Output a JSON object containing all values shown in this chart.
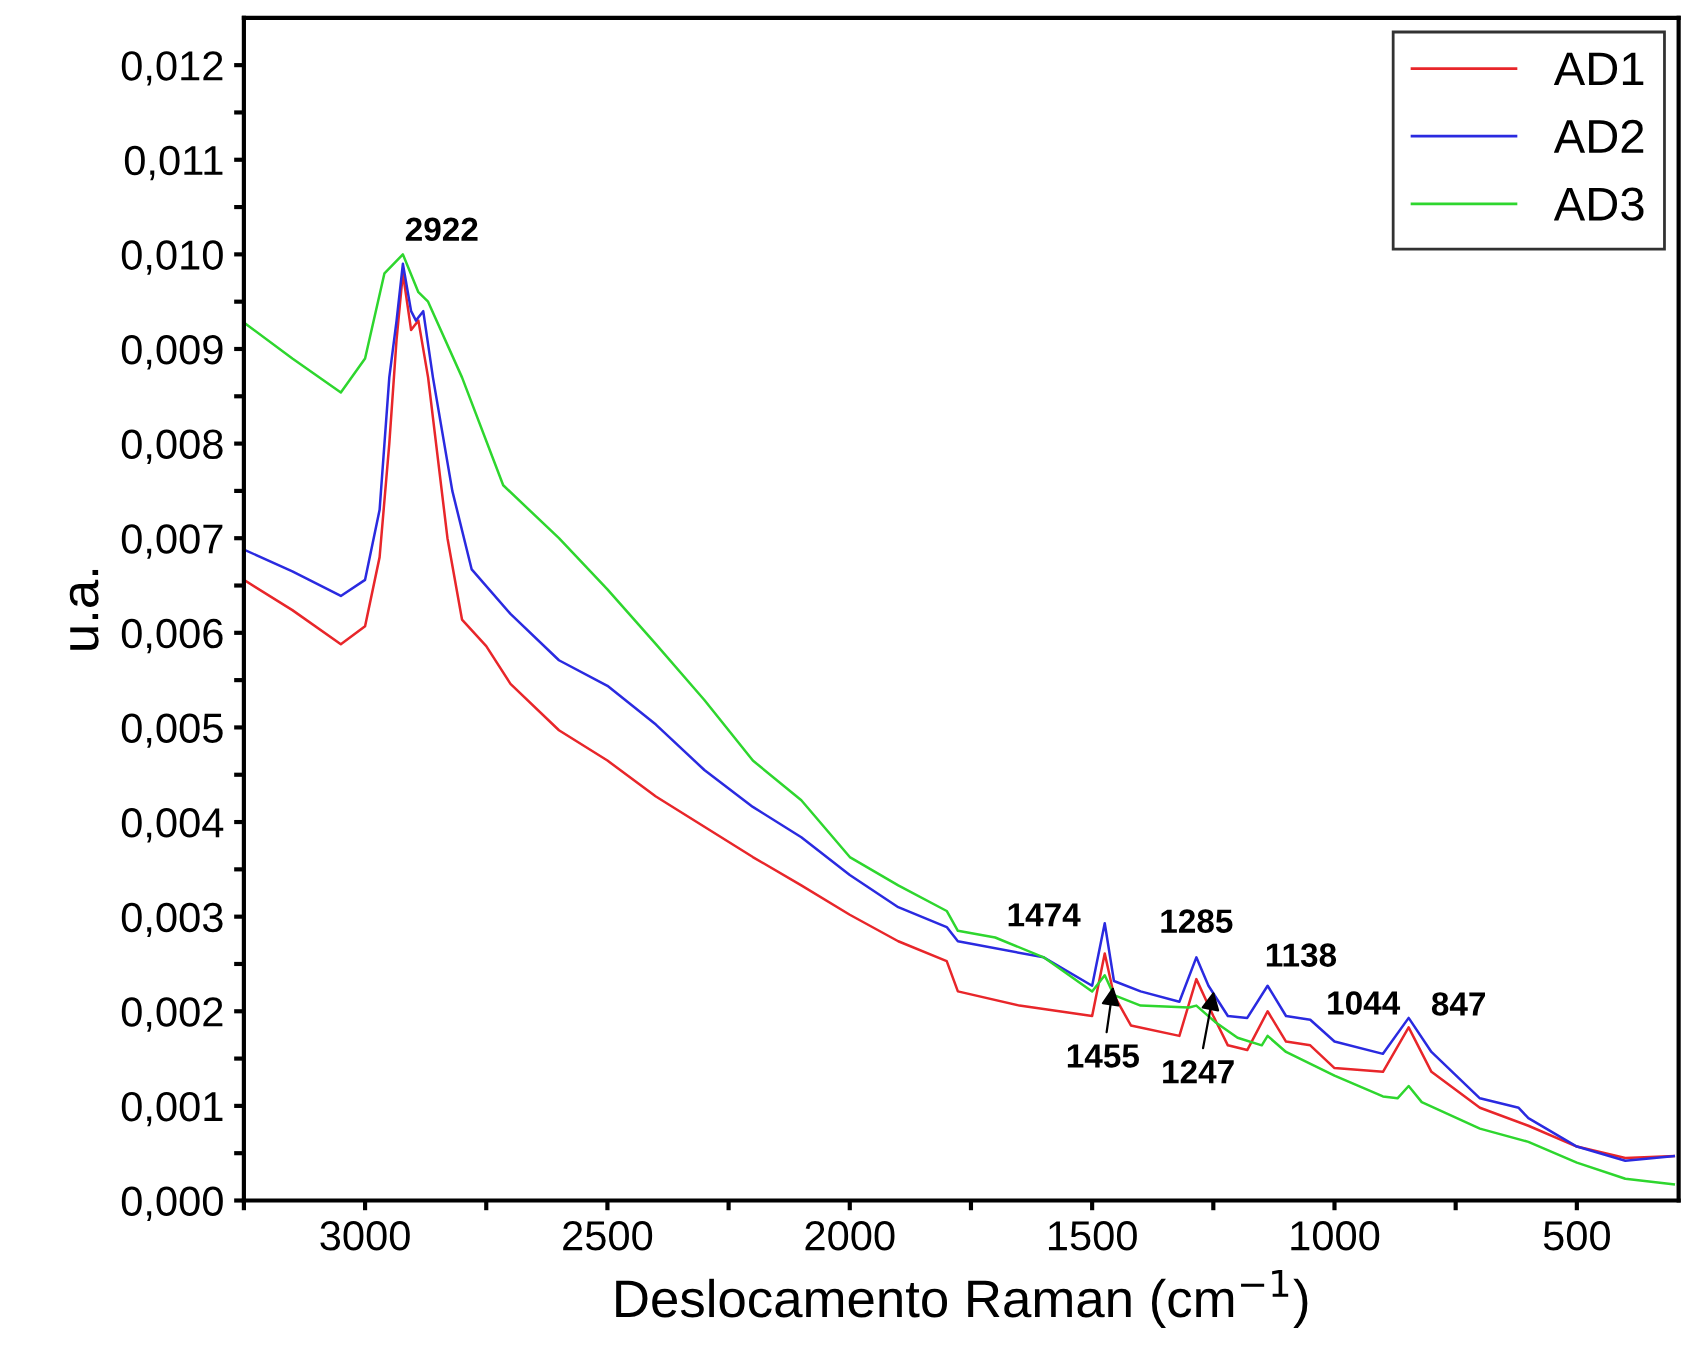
{
  "chart_data": {
    "type": "line",
    "xlabel": "Deslocamento Raman (cm$^{−1}$)",
    "ylabel": "u.a.",
    "xlim": [
      3250,
      290
    ],
    "ylim": [
      0,
      0.0125
    ],
    "xticks": [
      {
        "value": 3250,
        "label": null
      },
      3000,
      {
        "value": 2750,
        "label": null
      },
      2500,
      {
        "value": 2250,
        "label": null
      },
      2000,
      {
        "value": 1750,
        "label": null
      },
      1500,
      {
        "value": 1250,
        "label": null
      },
      1000,
      {
        "value": 750,
        "label": null
      },
      500
    ],
    "yticks": [
      {
        "value": 0,
        "label": "0,000"
      },
      {
        "value": 0.0005,
        "label": null
      },
      {
        "value": 0.001,
        "label": "0,001"
      },
      {
        "value": 0.0015,
        "label": null
      },
      {
        "value": 0.002,
        "label": "0,002"
      },
      {
        "value": 0.0025,
        "label": null
      },
      {
        "value": 0.003,
        "label": "0,003"
      },
      {
        "value": 0.0035,
        "label": null
      },
      {
        "value": 0.004,
        "label": "0,004"
      },
      {
        "value": 0.0045,
        "label": null
      },
      {
        "value": 0.005,
        "label": "0,005"
      },
      {
        "value": 0.0055,
        "label": null
      },
      {
        "value": 0.006,
        "label": "0,006"
      },
      {
        "value": 0.0065,
        "label": null
      },
      {
        "value": 0.007,
        "label": "0,007"
      },
      {
        "value": 0.0075,
        "label": null
      },
      {
        "value": 0.008,
        "label": "0,008"
      },
      {
        "value": 0.0085,
        "label": null
      },
      {
        "value": 0.009,
        "label": "0,009"
      },
      {
        "value": 0.0095,
        "label": null
      },
      {
        "value": 0.01,
        "label": "0,010"
      },
      {
        "value": 0.0105,
        "label": null
      },
      {
        "value": 0.011,
        "label": "0,011"
      },
      {
        "value": 0.0115,
        "label": null
      },
      {
        "value": 0.012,
        "label": "0,012"
      }
    ],
    "grid": false,
    "legend": "top right",
    "marker": "none",
    "line_style": "solid",
    "series": [
      {
        "name": "AD1",
        "color": "#e8262a",
        "x": [
          3250,
          3150,
          3050,
          3000,
          2970,
          2950,
          2935,
          2922,
          2905,
          2890,
          2870,
          2830,
          2800,
          2750,
          2700,
          2600,
          2500,
          2400,
          2300,
          2200,
          2100,
          2000,
          1900,
          1800,
          1777,
          1650,
          1500,
          1474,
          1455,
          1420,
          1320,
          1285,
          1250,
          1220,
          1180,
          1138,
          1100,
          1050,
          1000,
          900,
          847,
          800,
          700,
          600,
          500,
          400,
          300
        ],
        "values": [
          0.00656,
          0.00624,
          0.00588,
          0.00607,
          0.0068,
          0.008,
          0.0091,
          0.0098,
          0.0092,
          0.0093,
          0.0087,
          0.007,
          0.00614,
          0.00586,
          0.00546,
          0.00497,
          0.00465,
          0.00427,
          0.00395,
          0.00363,
          0.00333,
          0.00302,
          0.00274,
          0.00253,
          0.00221,
          0.00206,
          0.00195,
          0.00261,
          0.00217,
          0.00185,
          0.00174,
          0.00234,
          0.00195,
          0.00164,
          0.00159,
          0.002,
          0.00168,
          0.00164,
          0.0014,
          0.00136,
          0.00183,
          0.00136,
          0.00098,
          0.00079,
          0.00057,
          0.00045,
          0.00047
        ]
      },
      {
        "name": "AD2",
        "color": "#2a2ae0",
        "x": [
          3250,
          3150,
          3050,
          3000,
          2970,
          2950,
          2935,
          2922,
          2905,
          2895,
          2880,
          2860,
          2820,
          2780,
          2700,
          2600,
          2500,
          2400,
          2300,
          2200,
          2100,
          2000,
          1900,
          1800,
          1777,
          1600,
          1500,
          1474,
          1455,
          1400,
          1320,
          1285,
          1260,
          1220,
          1180,
          1138,
          1100,
          1050,
          1000,
          900,
          847,
          800,
          700,
          620,
          600,
          500,
          400,
          300
        ],
        "values": [
          0.00688,
          0.00665,
          0.00639,
          0.00656,
          0.0073,
          0.0087,
          0.0093,
          0.0099,
          0.0094,
          0.0093,
          0.0094,
          0.0087,
          0.0075,
          0.00667,
          0.0062,
          0.00571,
          0.00544,
          0.00503,
          0.00455,
          0.00416,
          0.00384,
          0.00344,
          0.0031,
          0.00289,
          0.00274,
          0.00257,
          0.00227,
          0.00293,
          0.00232,
          0.00221,
          0.0021,
          0.00257,
          0.00227,
          0.00195,
          0.00193,
          0.00227,
          0.00195,
          0.00191,
          0.00168,
          0.00155,
          0.00193,
          0.00157,
          0.00108,
          0.00098,
          0.00087,
          0.00057,
          0.00042,
          0.00047
        ]
      },
      {
        "name": "AD3",
        "color": "#2ed62e",
        "x": [
          3250,
          3150,
          3050,
          3000,
          2960,
          2922,
          2890,
          2870,
          2800,
          2715,
          2600,
          2500,
          2400,
          2300,
          2200,
          2100,
          2000,
          1900,
          1800,
          1777,
          1700,
          1600,
          1500,
          1474,
          1455,
          1400,
          1300,
          1285,
          1247,
          1200,
          1150,
          1138,
          1100,
          1000,
          900,
          870,
          847,
          820,
          700,
          600,
          500,
          400,
          300
        ],
        "values": [
          0.00928,
          0.0089,
          0.00854,
          0.0089,
          0.0098,
          0.01,
          0.0096,
          0.0095,
          0.0087,
          0.00756,
          0.007,
          0.00646,
          0.00588,
          0.00529,
          0.00465,
          0.00423,
          0.00363,
          0.00333,
          0.00306,
          0.00285,
          0.00278,
          0.00257,
          0.00221,
          0.00238,
          0.00217,
          0.00206,
          0.00204,
          0.00206,
          0.00189,
          0.00172,
          0.00164,
          0.00174,
          0.00157,
          0.00132,
          0.0011,
          0.00108,
          0.00121,
          0.00104,
          0.00076,
          0.00062,
          0.0004,
          0.00023,
          0.00017
        ]
      }
    ],
    "annotations": [
      {
        "text": "2922",
        "x": 2922,
        "y": 0.01
      },
      {
        "text": "1474",
        "x": 1474,
        "y": 0.00293
      },
      {
        "text": "1455",
        "x": 1455,
        "y": 0.00232
      },
      {
        "text": "1285",
        "x": 1285,
        "y": 0.00257
      },
      {
        "text": "1247",
        "x": 1247,
        "y": 0.00227
      },
      {
        "text": "1138",
        "x": 1138,
        "y": 0.00227
      },
      {
        "text": "1044",
        "x": 1044,
        "y": 0.00191
      },
      {
        "text": "847",
        "x": 847,
        "y": 0.00193
      }
    ]
  }
}
